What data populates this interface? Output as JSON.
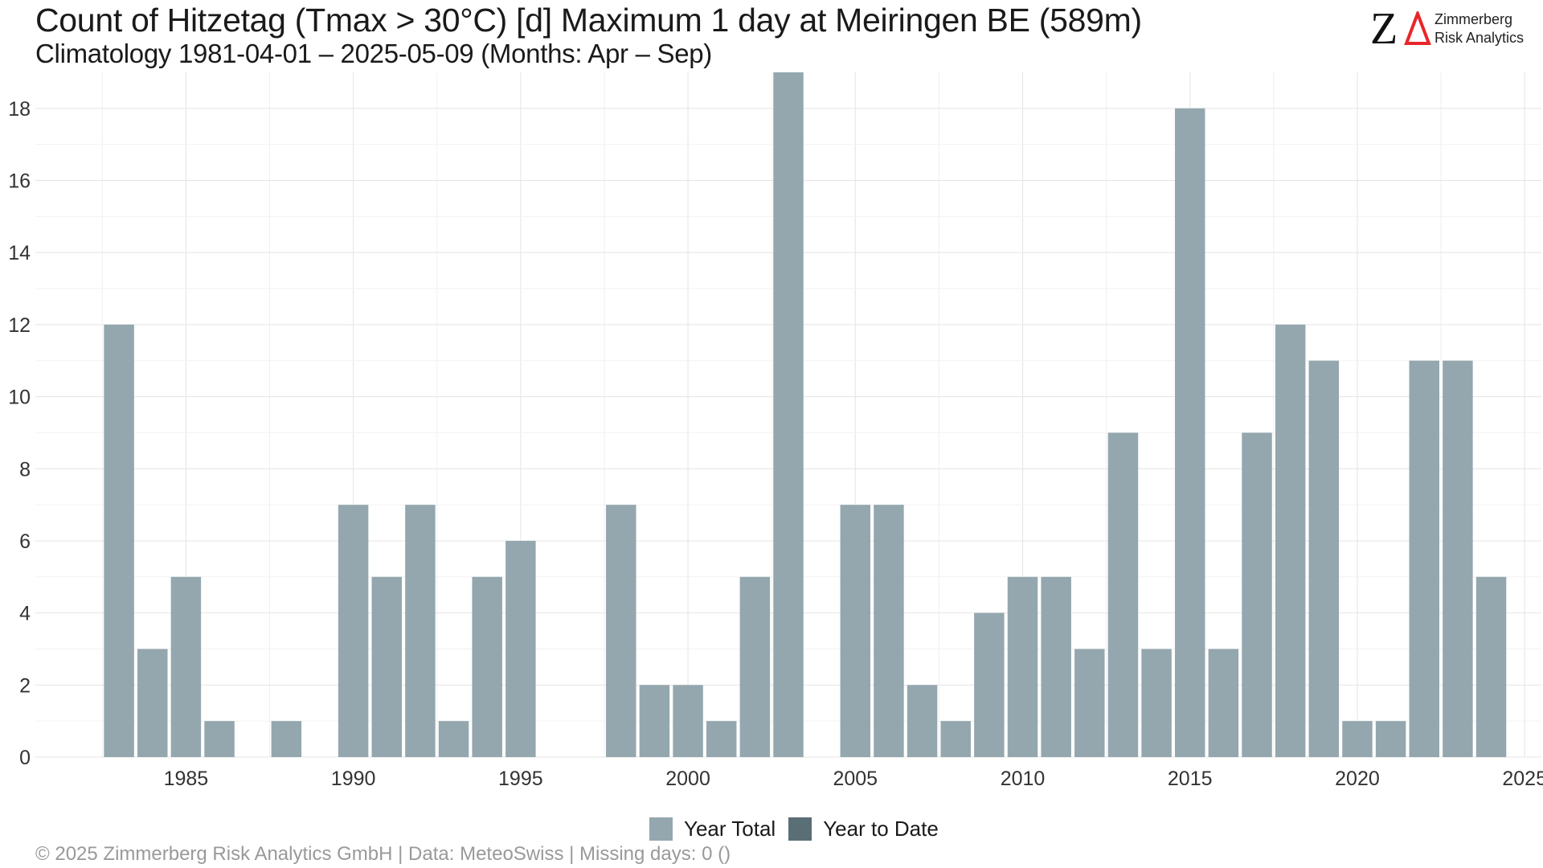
{
  "title": "Count of Hitzetag (Tmax > 30°C) [d] Maximum 1 day at Meiringen  BE (589m)",
  "subtitle": "Climatology 1981-04-01 – 2025-05-09 (Months: Apr – Sep)",
  "logo": {
    "mark": "Z",
    "line1": "Zimmerberg",
    "line2": "Risk Analytics"
  },
  "caption": "©  2025 Zimmerberg Risk Analytics GmbH | Data: MeteoSwiss | Missing days: 0 ()",
  "colors": {
    "year_total": "#94a7ae",
    "year_to_date": "#5a6e76",
    "logo_accent": "#e8262a",
    "grid": "#e4e4e4"
  },
  "legend": [
    {
      "label": "Year Total",
      "color": "#94a7ae"
    },
    {
      "label": "Year to Date",
      "color": "#5a6e76"
    }
  ],
  "chart_data": {
    "type": "bar",
    "xlim": [
      1980.5,
      2025.5
    ],
    "ylim": [
      0,
      19
    ],
    "x_ticks": [
      1985,
      1990,
      1995,
      2000,
      2005,
      2010,
      2015,
      2020,
      2025
    ],
    "y_ticks": [
      0,
      2,
      4,
      6,
      8,
      10,
      12,
      14,
      16,
      18
    ],
    "grid": true,
    "legend_position": "bottom",
    "series": [
      {
        "name": "Year Total",
        "x": [
          1983,
          1984,
          1985,
          1986,
          1988,
          1990,
          1991,
          1992,
          1993,
          1994,
          1995,
          1998,
          1999,
          2000,
          2001,
          2002,
          2003,
          2005,
          2006,
          2007,
          2008,
          2009,
          2010,
          2011,
          2012,
          2013,
          2014,
          2015,
          2016,
          2017,
          2018,
          2019,
          2020,
          2021,
          2022,
          2023,
          2024
        ],
        "values": [
          12,
          3,
          5,
          1,
          1,
          7,
          5,
          7,
          1,
          5,
          6,
          7,
          2,
          2,
          1,
          5,
          19,
          7,
          7,
          2,
          1,
          4,
          5,
          5,
          3,
          9,
          3,
          18,
          3,
          9,
          12,
          11,
          1,
          1,
          11,
          11,
          5
        ]
      },
      {
        "name": "Year to Date",
        "x": [],
        "values": []
      }
    ]
  }
}
